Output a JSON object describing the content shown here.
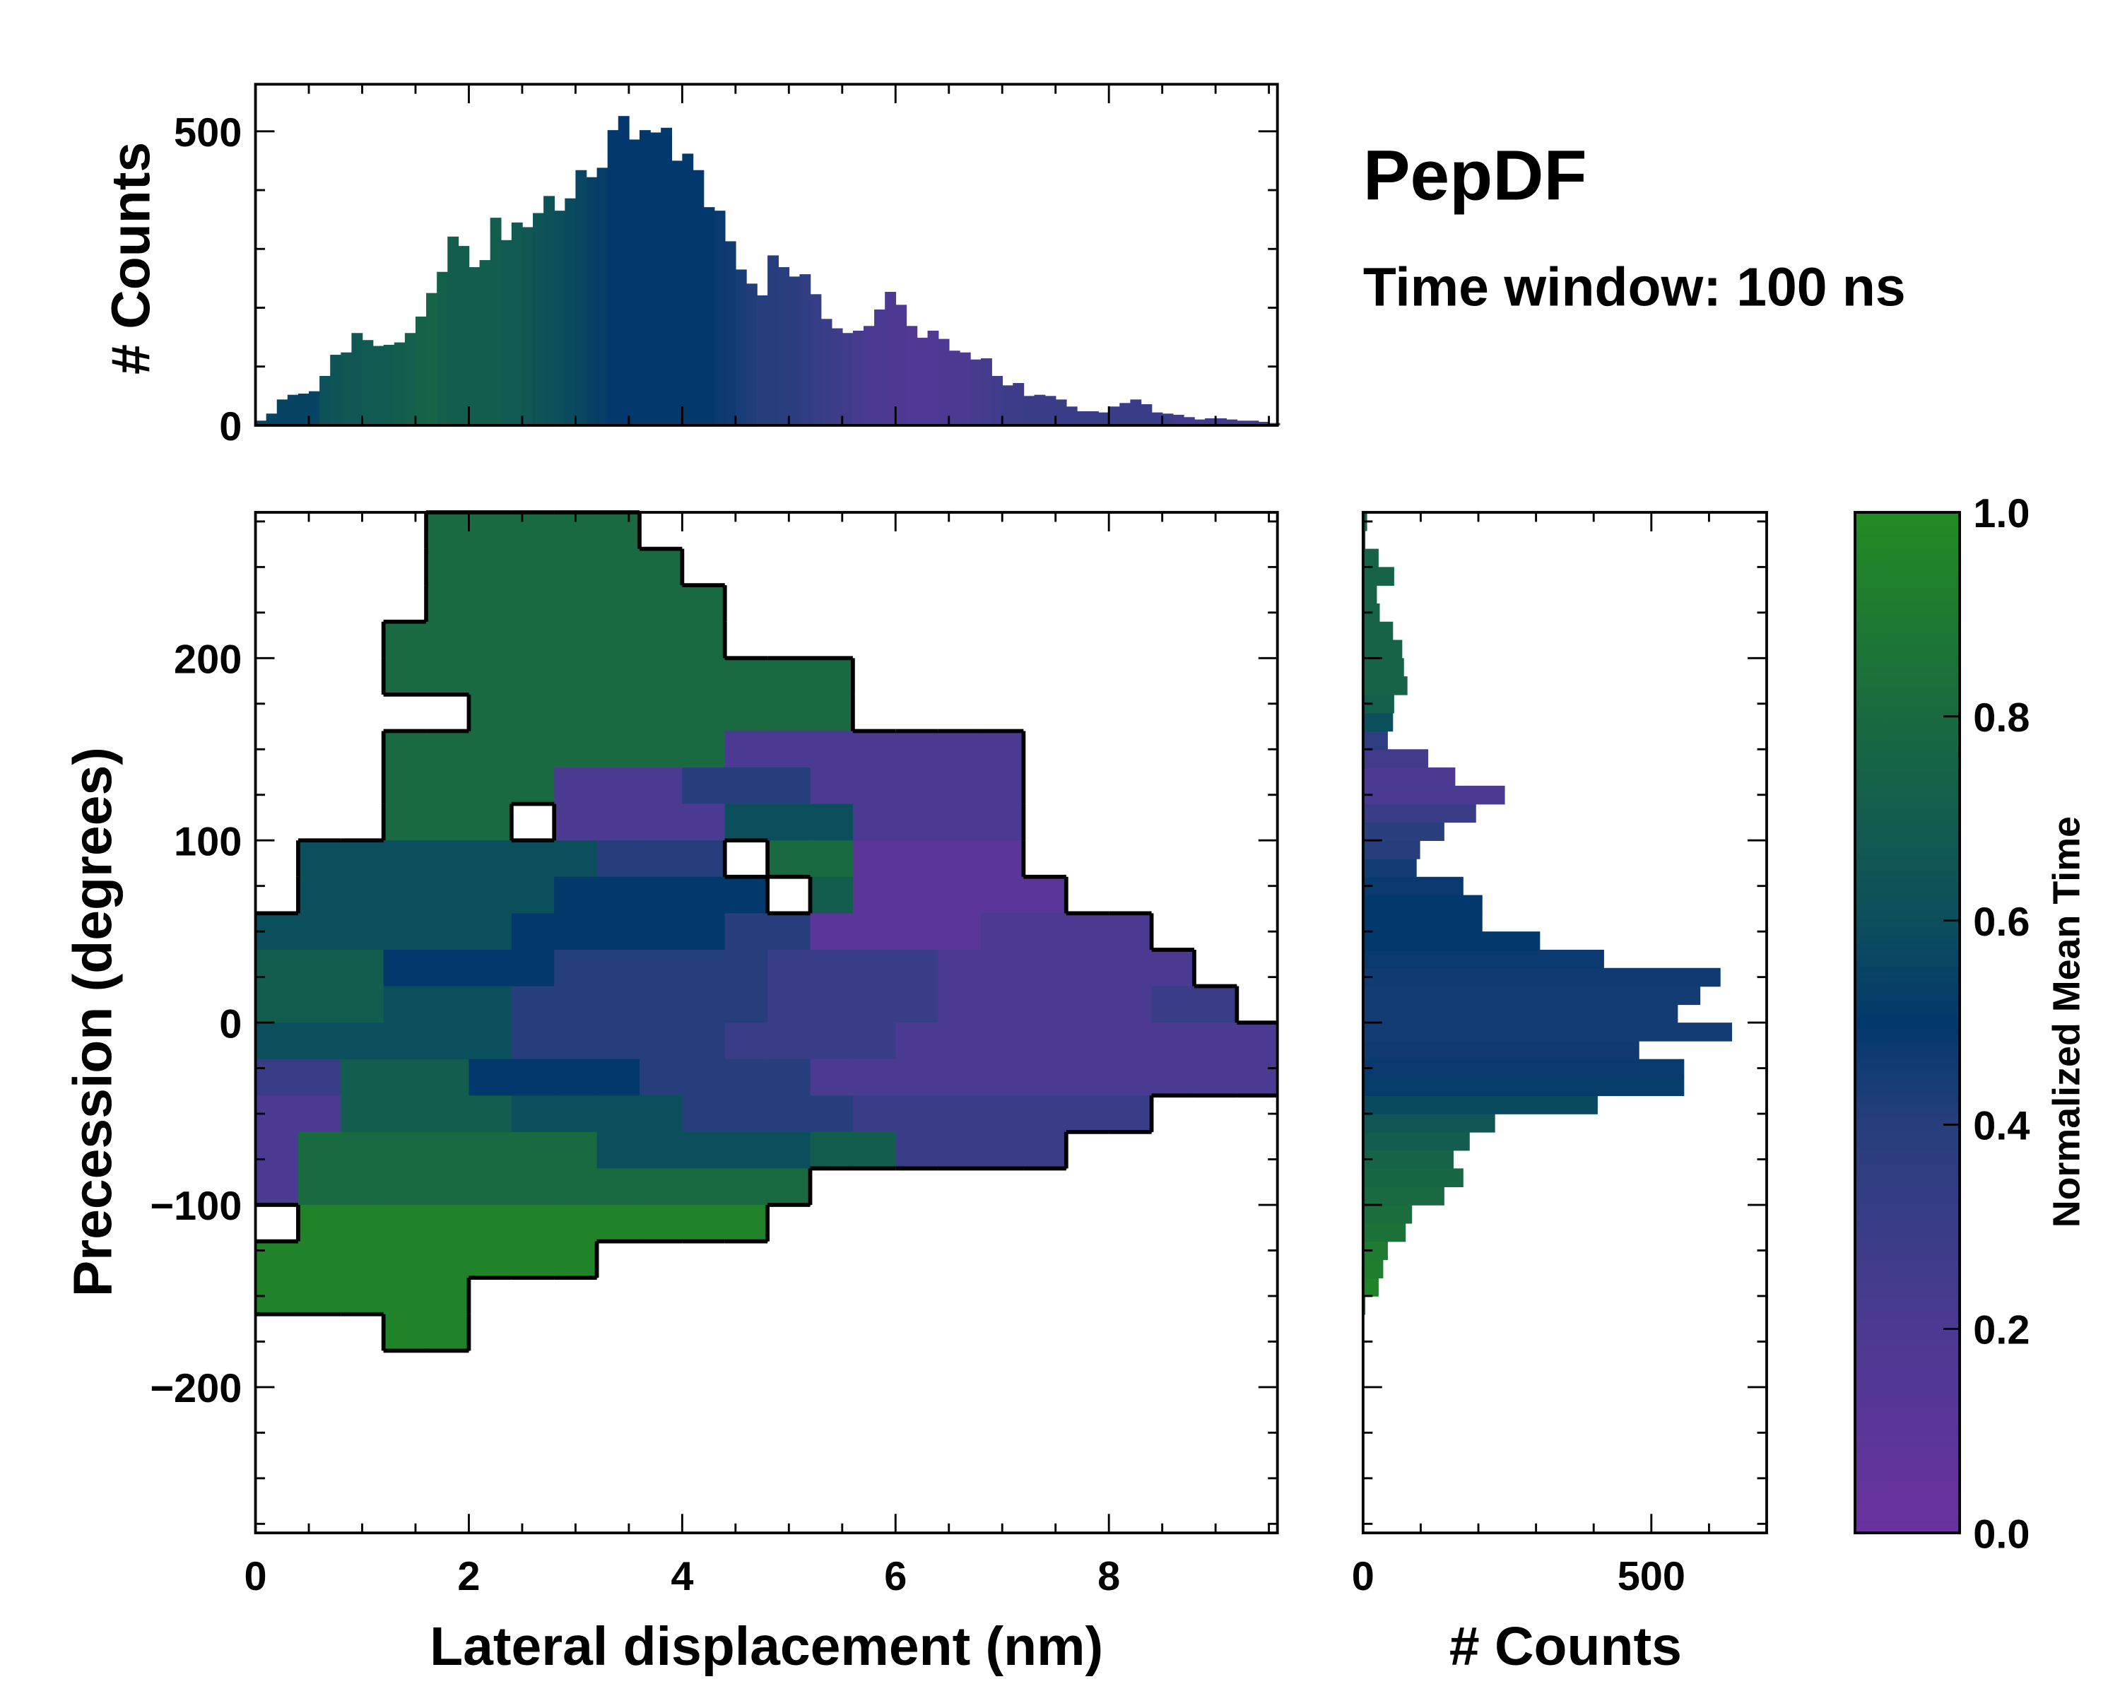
{
  "chart_data": [
    {
      "id": "main",
      "type": "heatmap",
      "xlabel": "Lateral displacement (nm)",
      "ylabel": "Precession (degrees)",
      "xlim": [
        0,
        9.58
      ],
      "ylim": [
        -280,
        280
      ],
      "xticks": [
        0,
        2,
        4,
        6,
        8
      ],
      "xtick_labels": [
        "0",
        "2",
        "4",
        "6",
        "8"
      ],
      "yticks": [
        -200,
        -100,
        0,
        100,
        200
      ],
      "ytick_labels": [
        "−200",
        "−100",
        "0",
        "100",
        "200"
      ],
      "grid_x_step": 0.4,
      "grid_y_step": 20,
      "grid_top": 280,
      "grid_encoding": "each char = mean time in tenths; '.' = no data; rows top to bottom",
      "grid": [
        "....88888...............",
        "....888888..............",
        "....8888888.............",
        "...88888888.............",
        "...88888888888..........",
        ".....888888888..........",
        "...888888882222222......",
        "...888822244422222......",
        "...888.22226662222......",
        ".6666666444.881111......",
        ".66666655555.711111.....",
        "666666555554411112222...",
        "7775555444443333222222..",
        "77766644444433332222233.",
        "666666444443333222222222",
        "337775555444422222222222",
        "227777666644443333333...",
        "2888888866666773333....",
        "2888888888888...........",
        ".99999999999............",
        "99999999................",
        "99999...................",
        "...99..................."
      ]
    },
    {
      "id": "top_hist",
      "type": "bar",
      "ylabel": "# Counts",
      "xlim": [
        0,
        9.58
      ],
      "ylim": [
        0,
        580
      ],
      "yticks": [
        0,
        500
      ],
      "ytick_labels": [
        "0",
        "500"
      ],
      "bin_start": 0,
      "bin_width": 0.1,
      "values": [
        8,
        20,
        44,
        52,
        54,
        58,
        84,
        120,
        124,
        157,
        145,
        135,
        137,
        141,
        157,
        185,
        225,
        261,
        321,
        305,
        269,
        281,
        353,
        315,
        345,
        337,
        361,
        390,
        365,
        386,
        434,
        422,
        438,
        502,
        526,
        486,
        502,
        498,
        506,
        450,
        462,
        434,
        371,
        365,
        313,
        265,
        241,
        221,
        289,
        269,
        253,
        257,
        223,
        181,
        165,
        157,
        161,
        169,
        197,
        227,
        205,
        169,
        149,
        161,
        147,
        127,
        124,
        112,
        114,
        84,
        68,
        72,
        50,
        52,
        50,
        44,
        32,
        24,
        24,
        22,
        32,
        38,
        44,
        36,
        22,
        20,
        18,
        14,
        10,
        12,
        12,
        10,
        8,
        8,
        6,
        4
      ],
      "mean_time": [
        0.55,
        0.55,
        0.55,
        0.55,
        0.55,
        0.55,
        0.62,
        0.64,
        0.66,
        0.66,
        0.68,
        0.68,
        0.68,
        0.7,
        0.72,
        0.74,
        0.75,
        0.72,
        0.7,
        0.7,
        0.7,
        0.7,
        0.7,
        0.68,
        0.68,
        0.66,
        0.64,
        0.62,
        0.6,
        0.58,
        0.56,
        0.54,
        0.52,
        0.5,
        0.5,
        0.5,
        0.5,
        0.5,
        0.5,
        0.5,
        0.5,
        0.5,
        0.5,
        0.48,
        0.46,
        0.44,
        0.42,
        0.4,
        0.4,
        0.38,
        0.36,
        0.34,
        0.32,
        0.3,
        0.28,
        0.26,
        0.22,
        0.2,
        0.2,
        0.18,
        0.18,
        0.16,
        0.16,
        0.16,
        0.18,
        0.2,
        0.2,
        0.22,
        0.24,
        0.26,
        0.28,
        0.28,
        0.3,
        0.3,
        0.3,
        0.3,
        0.3,
        0.3,
        0.3,
        0.3,
        0.3,
        0.3,
        0.3,
        0.3,
        0.3,
        0.3,
        0.26,
        0.26,
        0.26,
        0.26,
        0.26,
        0.26,
        0.26,
        0.26,
        0.26,
        0.26
      ]
    },
    {
      "id": "right_hist",
      "type": "bar",
      "orientation": "horizontal",
      "xlabel": "# Counts",
      "xlim": [
        0,
        700
      ],
      "ylim": [
        -280,
        280
      ],
      "xticks": [
        0,
        500
      ],
      "xtick_labels": [
        "0",
        "500"
      ],
      "bin_start": -160,
      "bin_width": 10,
      "values": [
        4,
        27,
        35,
        43,
        74,
        85,
        141,
        174,
        157,
        185,
        229,
        407,
        557,
        557,
        479,
        640,
        546,
        585,
        620,
        418,
        307,
        207,
        207,
        174,
        93,
        99,
        141,
        196,
        246,
        160,
        113,
        43,
        52,
        54,
        77,
        71,
        68,
        52,
        29,
        24,
        54,
        27,
        4,
        7
      ],
      "mean_time": [
        0.95,
        0.95,
        0.92,
        0.9,
        0.85,
        0.82,
        0.8,
        0.78,
        0.75,
        0.7,
        0.65,
        0.58,
        0.52,
        0.48,
        0.46,
        0.45,
        0.45,
        0.45,
        0.46,
        0.48,
        0.5,
        0.5,
        0.5,
        0.48,
        0.45,
        0.4,
        0.38,
        0.3,
        0.2,
        0.18,
        0.25,
        0.35,
        0.6,
        0.72,
        0.75,
        0.75,
        0.75,
        0.75,
        0.75,
        0.75,
        0.75,
        0.75,
        0.75,
        0.75
      ]
    },
    {
      "id": "colorbar",
      "type": "colorbar",
      "label": "Normalized Mean Time",
      "lim": [
        0,
        1
      ],
      "ticks": [
        0,
        0.2,
        0.4,
        0.6,
        0.8,
        1.0
      ],
      "tick_labels": [
        "0.0",
        "0.2",
        "0.4",
        "0.6",
        "0.8",
        "1.0"
      ]
    }
  ],
  "colormap": [
    [
      0,
      "#6a329f"
    ],
    [
      0.2,
      "#4b3a91"
    ],
    [
      0.4,
      "#263f7c"
    ],
    [
      0.5,
      "#02386b"
    ],
    [
      0.6,
      "#0c4f5c"
    ],
    [
      0.8,
      "#196a40"
    ],
    [
      1,
      "#228b22"
    ]
  ],
  "title": "PepDF",
  "subtitle": "Time window: 100 ns"
}
